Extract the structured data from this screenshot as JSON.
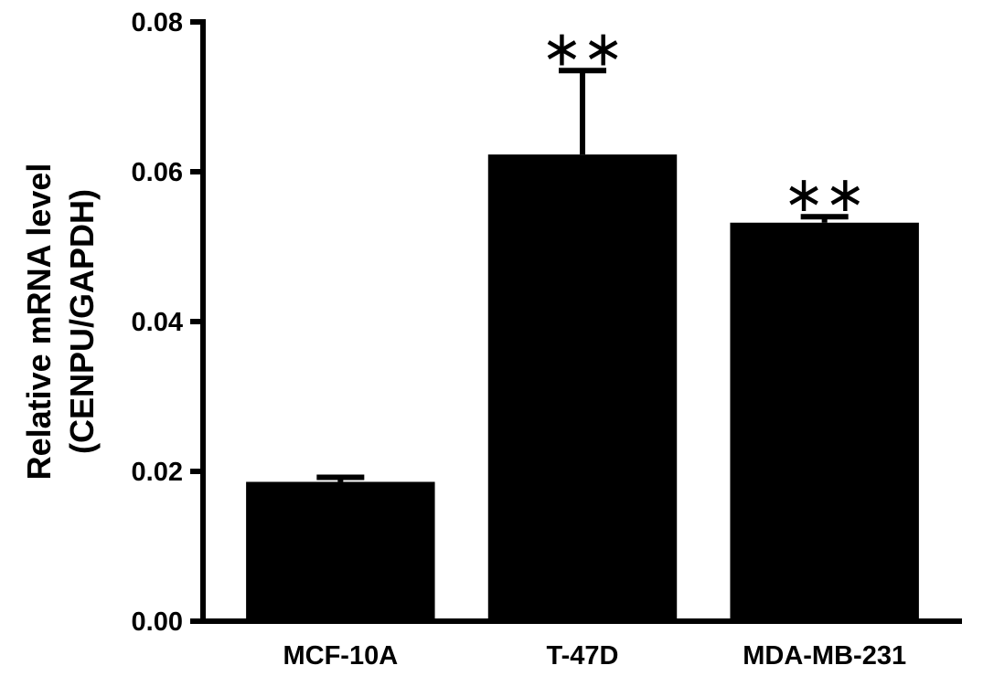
{
  "chart_data": {
    "type": "bar",
    "title": "",
    "xlabel": "",
    "ylabel": [
      "Relative mRNA level",
      "(CENPU/GAPDH)"
    ],
    "categories": [
      "MCF-10A",
      "T-47D",
      "MDA-MB-231"
    ],
    "values": [
      0.0186,
      0.0623,
      0.0532
    ],
    "error_upper": [
      0.0192,
      0.0735,
      0.054
    ],
    "significance": [
      "",
      "**",
      "**"
    ],
    "ylim": [
      0,
      0.08
    ],
    "yticks": [
      "0.00",
      "0.02",
      "0.04",
      "0.06",
      "0.08"
    ],
    "ytick_values": [
      0,
      0.02,
      0.04,
      0.06,
      0.08
    ],
    "grid": false,
    "legend": "none",
    "bar_color": "#000000"
  }
}
